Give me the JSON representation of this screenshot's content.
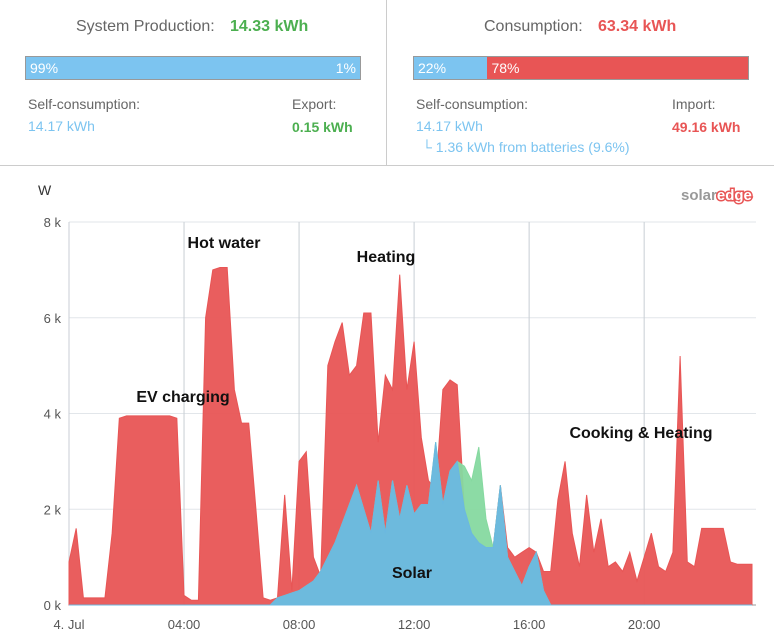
{
  "production": {
    "label": "System Production:",
    "value": "14.33 kWh",
    "bar": [
      {
        "value": 99,
        "label": "99%"
      },
      {
        "value": 1,
        "label": "1%"
      }
    ],
    "left_label": "Self-consumption:",
    "left_value": "14.17 kWh",
    "right_label": "Export:",
    "right_value": "0.15 kWh"
  },
  "consumption": {
    "label": "Consumption:",
    "value": "63.34 kWh",
    "bar": [
      {
        "value": 22,
        "label": "22%"
      },
      {
        "value": 78,
        "label": "78%"
      }
    ],
    "left_label": "Self-consumption:",
    "left_value": "14.17 kWh",
    "battery_note": "└ 1.36 kWh from batteries (9.6%)",
    "right_label": "Import:",
    "right_value": "49.16 kWh"
  },
  "chart_data": {
    "type": "area",
    "y_label": "W",
    "logo": [
      "solar",
      "edge"
    ],
    "xlim": [
      0,
      23.75
    ],
    "xticks": [
      {
        "value": 0,
        "label": "4. Jul"
      },
      {
        "value": 4,
        "label": "04:00"
      },
      {
        "value": 8,
        "label": "08:00"
      },
      {
        "value": 12,
        "label": "12:00"
      },
      {
        "value": 16,
        "label": "16:00"
      },
      {
        "value": 20,
        "label": "20:00"
      }
    ],
    "ylim": [
      0,
      8000
    ],
    "yticks": [
      {
        "value": 0,
        "label": "0 k"
      },
      {
        "value": 2000,
        "label": "2 k"
      },
      {
        "value": 4000,
        "label": "4 k"
      },
      {
        "value": 6000,
        "label": "6 k"
      },
      {
        "value": 8000,
        "label": "8 k"
      }
    ],
    "grid": true,
    "x": [
      0,
      0.25,
      0.5,
      0.75,
      1,
      1.25,
      1.5,
      1.75,
      2,
      2.25,
      2.5,
      2.75,
      3,
      3.25,
      3.5,
      3.75,
      4,
      4.25,
      4.5,
      4.75,
      5,
      5.25,
      5.5,
      5.75,
      6,
      6.25,
      6.5,
      6.75,
      7,
      7.25,
      7.5,
      7.75,
      8,
      8.25,
      8.5,
      8.75,
      9,
      9.25,
      9.5,
      9.75,
      10,
      10.25,
      10.5,
      10.75,
      11,
      11.25,
      11.5,
      11.75,
      12,
      12.25,
      12.5,
      12.75,
      13,
      13.25,
      13.5,
      13.75,
      14,
      14.25,
      14.5,
      14.75,
      15,
      15.25,
      15.5,
      15.75,
      16,
      16.25,
      16.5,
      16.75,
      17,
      17.25,
      17.5,
      17.75,
      18,
      18.25,
      18.5,
      18.75,
      19,
      19.25,
      19.5,
      19.75,
      20,
      20.25,
      20.5,
      20.75,
      21,
      21.25,
      21.5,
      21.75,
      22,
      22.25,
      22.5,
      22.75,
      23,
      23.25,
      23.5,
      23.75
    ],
    "series": [
      {
        "color": "#e85555",
        "values": [
          900,
          1600,
          150,
          150,
          150,
          150,
          1500,
          3900,
          3950,
          3950,
          3950,
          3950,
          3950,
          3950,
          3950,
          3900,
          200,
          100,
          100,
          6000,
          7000,
          7050,
          7050,
          4500,
          3800,
          3800,
          2000,
          150,
          100,
          150,
          2300,
          300,
          3000,
          3200,
          1000,
          600,
          5000,
          5500,
          5900,
          4800,
          5000,
          6100,
          6100,
          3400,
          4800,
          4500,
          6900,
          4500,
          5500,
          3500,
          2600,
          2400,
          4500,
          4700,
          4600,
          2000,
          1500,
          1300,
          1200,
          1200,
          2500,
          1200,
          1000,
          1100,
          1200,
          1100,
          700,
          700,
          2200,
          3000,
          1500,
          800,
          2300,
          1100,
          1800,
          800,
          900,
          700,
          1100,
          500,
          1000,
          1500,
          800,
          700,
          1100,
          5200,
          900,
          800,
          1600,
          1600,
          1600,
          1600,
          900,
          850,
          850,
          850
        ]
      },
      {
        "color": "#86d9a0",
        "values": [
          0,
          0,
          0,
          0,
          0,
          0,
          0,
          0,
          0,
          0,
          0,
          0,
          0,
          0,
          0,
          0,
          0,
          0,
          0,
          0,
          0,
          0,
          0,
          0,
          0,
          0,
          0,
          0,
          0,
          150,
          200,
          250,
          300,
          400,
          500,
          700,
          1000,
          1300,
          1700,
          2100,
          2500,
          2000,
          1500,
          2600,
          1500,
          2600,
          1800,
          2500,
          1900,
          2100,
          2100,
          3400,
          2100,
          2800,
          3000,
          2900,
          2600,
          3300,
          1800,
          1200,
          2500,
          1000,
          700,
          400,
          800,
          1100,
          300,
          0,
          0,
          0,
          0,
          0,
          0,
          0,
          0,
          0,
          0,
          0,
          0,
          0,
          0,
          0,
          0,
          0,
          0,
          0,
          0,
          0,
          0,
          0,
          0,
          0,
          0,
          0,
          0,
          0
        ]
      },
      {
        "color": "#6bb8e0",
        "values": [
          0,
          0,
          0,
          0,
          0,
          0,
          0,
          0,
          0,
          0,
          0,
          0,
          0,
          0,
          0,
          0,
          0,
          0,
          0,
          0,
          0,
          0,
          0,
          0,
          0,
          0,
          0,
          0,
          0,
          150,
          200,
          250,
          300,
          400,
          500,
          700,
          1000,
          1300,
          1700,
          2100,
          2500,
          2000,
          1500,
          2600,
          1500,
          2600,
          1800,
          2500,
          1900,
          2100,
          2100,
          3400,
          2100,
          2800,
          3000,
          2000,
          1500,
          1300,
          1200,
          1200,
          2500,
          1000,
          700,
          400,
          800,
          1100,
          300,
          0,
          0,
          0,
          0,
          0,
          0,
          0,
          0,
          0,
          0,
          0,
          0,
          0,
          0,
          0,
          0,
          0,
          0,
          0,
          0,
          0,
          0,
          0,
          0,
          0,
          0,
          0,
          0,
          0
        ]
      }
    ],
    "annotations": [
      "Hot water",
      "Heating",
      "EV charging",
      "Cooking & Heating",
      "Solar"
    ]
  }
}
